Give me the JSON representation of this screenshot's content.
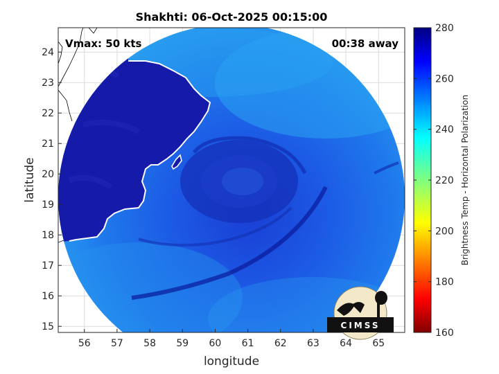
{
  "title": "Shakhti: 06-Oct-2025 00:15:00",
  "annotations": {
    "vmax": "Vmax: 50 kts",
    "time_away": "00:38 away"
  },
  "axes": {
    "xlabel": "longitude",
    "ylabel": "latitude",
    "xlim": [
      55.2,
      65.8
    ],
    "ylim": [
      14.8,
      24.8
    ],
    "xticks": [
      56,
      57,
      58,
      59,
      60,
      61,
      62,
      63,
      64,
      65
    ],
    "yticks": [
      15,
      16,
      17,
      18,
      19,
      20,
      21,
      22,
      23,
      24
    ],
    "grid": true
  },
  "colorbar": {
    "label": "Brightness Temp - Horizontal Polarization",
    "range": [
      160,
      280
    ],
    "ticks": [
      160,
      180,
      200,
      220,
      240,
      260,
      280
    ],
    "colormap": "jet"
  },
  "logo": {
    "text": "CIMSS"
  },
  "colors": {
    "land": "#1a1fb0",
    "ocean": "#1e6ee8",
    "coast": "#ffffff",
    "border": "#000000"
  }
}
